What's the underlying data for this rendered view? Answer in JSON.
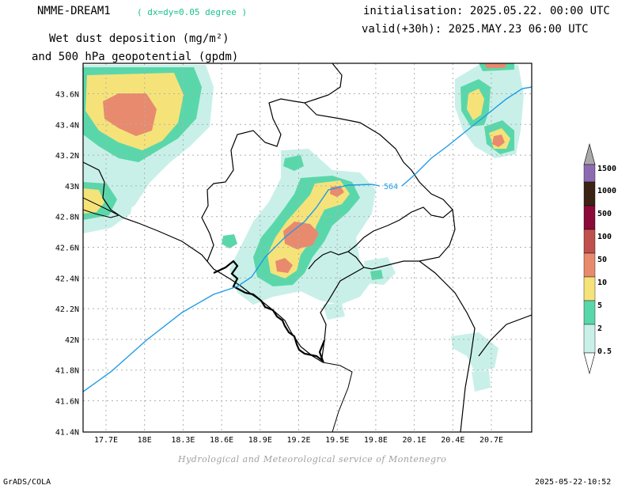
{
  "header": {
    "model": "NMME-DREAM1",
    "resolution": "( dx=dy=0.05 degree )",
    "product_line1": "Wet dust deposition (mg/m²)",
    "product_line2": "and 500 hPa geopotential (gpdm)",
    "init": "initialisation: 2025.05.22. 00:00 UTC",
    "valid": "valid(+30h): 2025.MAY.23 06:00 UTC"
  },
  "map": {
    "lat_labels": [
      "43.6N",
      "43.4N",
      "43.2N",
      "43N",
      "42.8N",
      "42.6N",
      "42.4N",
      "42.2N",
      "42N",
      "41.8N",
      "41.6N",
      "41.4N"
    ],
    "lon_labels": [
      "17.7E",
      "18E",
      "18.3E",
      "18.6E",
      "18.9E",
      "19.2E",
      "19.5E",
      "19.8E",
      "20.1E",
      "20.4E",
      "20.7E"
    ],
    "contour_label": "564",
    "contour_color": "#1e9be6"
  },
  "legend": {
    "labels": [
      "1500",
      "1000",
      "500",
      "100",
      "50",
      "10",
      "5",
      "2",
      "0.5"
    ],
    "colors": {
      "l1": "#c8f0e8",
      "l2": "#5ad7aa",
      "l3": "#f5e37a",
      "l4": "#e88a6e",
      "l5": "#c0504d",
      "l6": "#8b0a3a",
      "l7": "#3c2414",
      "l8": "#8c6bb1",
      "l9": "#a9a9a9"
    }
  },
  "footer": {
    "credit": "Hydrological and Meteorological service of Montenegro",
    "left": "GrADS/COLA",
    "right": "2025-05-22-10:52"
  }
}
